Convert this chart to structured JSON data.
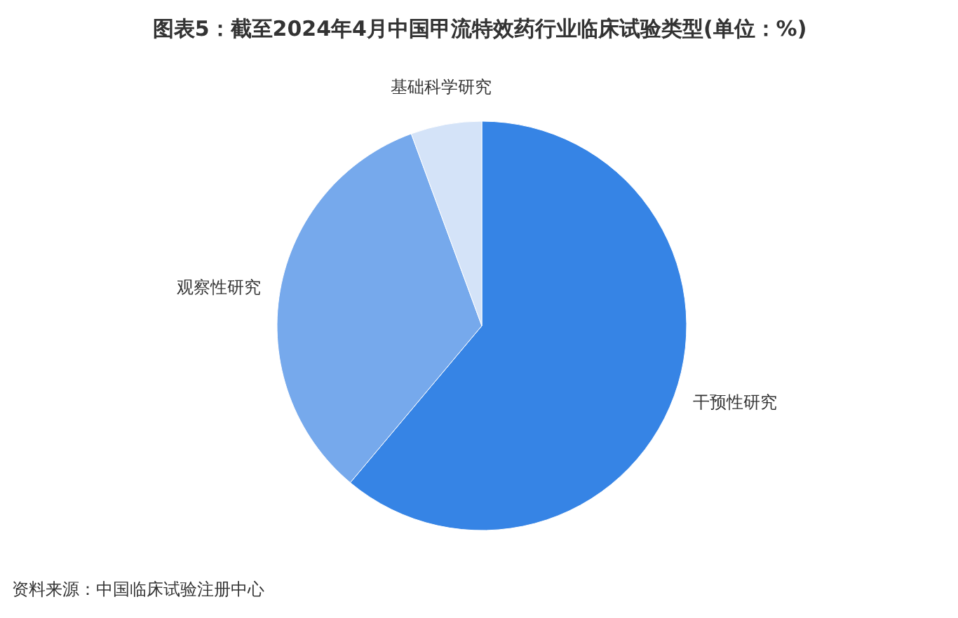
{
  "chart_data": {
    "type": "pie",
    "title": "图表5：截至2024年4月中国甲流特效药行业临床试验类型(单位：%)",
    "categories": [
      "干预性研究",
      "观察性研究",
      "基础科学研究"
    ],
    "values": [
      61.1,
      33.3,
      5.6
    ],
    "colors": [
      "#3684e5",
      "#76a9ec",
      "#d4e3f8"
    ],
    "annotations": [
      "资料来源：中国临床试验注册中心"
    ]
  }
}
